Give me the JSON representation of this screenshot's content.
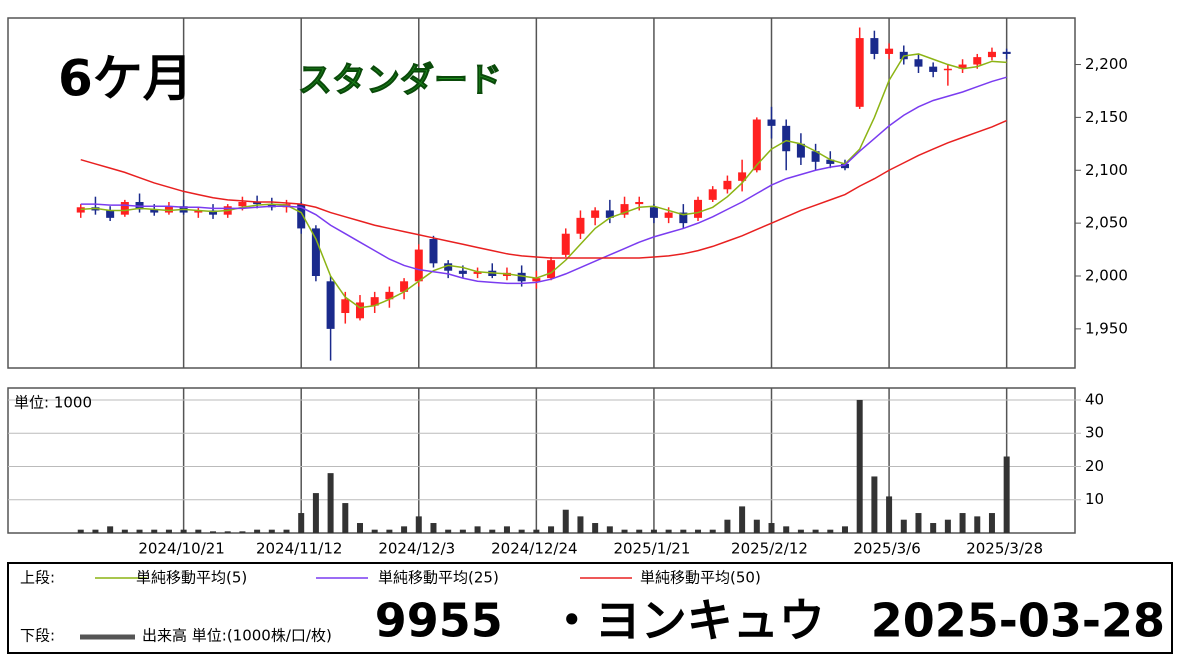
{
  "chart_data": [
    {
      "type": "candlestick",
      "label": "6ケ月",
      "market": "スタンダード",
      "x": [
        1,
        3,
        5,
        7,
        9,
        11,
        13,
        15,
        17,
        19,
        21,
        23,
        25,
        27,
        29,
        31,
        33,
        35,
        37,
        39,
        41,
        43,
        45,
        47,
        49,
        51,
        53,
        55,
        57,
        59,
        61,
        63,
        65,
        67,
        69,
        71,
        73,
        75,
        77,
        79,
        81,
        83,
        85,
        87,
        89,
        91,
        93,
        95,
        97,
        99,
        101,
        103,
        105,
        107,
        109,
        111,
        113,
        115,
        117,
        119,
        121,
        123,
        125,
        127
      ],
      "open": [
        2060,
        2065,
        2062,
        2058,
        2070,
        2063,
        2060,
        2066,
        2060,
        2062,
        2058,
        2066,
        2070,
        2068,
        2065,
        2068,
        2045,
        1995,
        1965,
        1960,
        1972,
        1978,
        1985,
        1995,
        2035,
        2012,
        2005,
        2002,
        2005,
        2000,
        2003,
        1995,
        1998,
        2020,
        2040,
        2055,
        2062,
        2058,
        2068,
        2065,
        2055,
        2060,
        2055,
        2072,
        2082,
        2090,
        2100,
        2148,
        2142,
        2125,
        2118,
        2110,
        2106,
        2160,
        2225,
        2210,
        2212,
        2205,
        2198,
        2195,
        2196,
        2200,
        2207,
        2212
      ],
      "high": [
        2068,
        2075,
        2066,
        2072,
        2078,
        2068,
        2070,
        2072,
        2065,
        2068,
        2068,
        2075,
        2076,
        2074,
        2072,
        2070,
        2048,
        2000,
        1985,
        1982,
        1985,
        1990,
        1998,
        2030,
        2038,
        2015,
        2010,
        2008,
        2012,
        2008,
        2010,
        2005,
        2018,
        2045,
        2062,
        2065,
        2072,
        2075,
        2075,
        2068,
        2065,
        2068,
        2075,
        2085,
        2095,
        2110,
        2150,
        2160,
        2148,
        2135,
        2125,
        2118,
        2110,
        2235,
        2232,
        2220,
        2218,
        2210,
        2202,
        2200,
        2205,
        2210,
        2216,
        2215
      ],
      "low": [
        2055,
        2058,
        2052,
        2056,
        2060,
        2057,
        2058,
        2058,
        2055,
        2054,
        2055,
        2062,
        2064,
        2062,
        2060,
        2040,
        1995,
        1920,
        1955,
        1958,
        1965,
        1970,
        1978,
        1990,
        2008,
        1998,
        1998,
        1998,
        1998,
        1996,
        1990,
        1988,
        1996,
        2018,
        2035,
        2048,
        2050,
        2055,
        2062,
        2050,
        2050,
        2045,
        2052,
        2070,
        2078,
        2080,
        2098,
        2130,
        2100,
        2105,
        2100,
        2102,
        2100,
        2158,
        2205,
        2205,
        2200,
        2192,
        2188,
        2180,
        2192,
        2196,
        2204,
        2205
      ],
      "close": [
        2065,
        2062,
        2055,
        2070,
        2063,
        2060,
        2066,
        2060,
        2062,
        2058,
        2066,
        2070,
        2068,
        2065,
        2068,
        2045,
        2000,
        1950,
        1978,
        1975,
        1980,
        1985,
        1995,
        2025,
        2012,
        2005,
        2002,
        2004,
        2000,
        2003,
        1995,
        1998,
        2015,
        2040,
        2055,
        2062,
        2055,
        2068,
        2070,
        2055,
        2060,
        2050,
        2072,
        2082,
        2090,
        2098,
        2148,
        2142,
        2118,
        2112,
        2108,
        2106,
        2102,
        2225,
        2210,
        2215,
        2205,
        2198,
        2193,
        2196,
        2200,
        2207,
        2212,
        2210
      ],
      "up_color": "#ff2020",
      "down_color": "#1a2a8c",
      "series": [
        {
          "name": "単純移動平均(5)",
          "color": "#8cb414",
          "values": [
            2063,
            2064,
            2062,
            2062,
            2064,
            2063,
            2062,
            2063,
            2062,
            2061,
            2062,
            2065,
            2067,
            2068,
            2067,
            2060,
            2035,
            2000,
            1980,
            1970,
            1972,
            1978,
            1985,
            1995,
            2005,
            2010,
            2008,
            2004,
            2003,
            2002,
            2000,
            1998,
            2003,
            2015,
            2030,
            2045,
            2055,
            2060,
            2065,
            2066,
            2062,
            2058,
            2060,
            2065,
            2075,
            2088,
            2105,
            2120,
            2128,
            2125,
            2118,
            2110,
            2106,
            2120,
            2150,
            2185,
            2208,
            2210,
            2205,
            2200,
            2196,
            2198,
            2203,
            2202
          ]
        },
        {
          "name": "単純移動平均(25)",
          "color": "#7a3cf0",
          "values": [
            2068,
            2068,
            2067,
            2067,
            2066,
            2066,
            2066,
            2065,
            2065,
            2064,
            2064,
            2064,
            2065,
            2066,
            2066,
            2065,
            2058,
            2048,
            2040,
            2032,
            2024,
            2016,
            2010,
            2006,
            2004,
            2002,
            1998,
            1995,
            1994,
            1993,
            1993,
            1994,
            1997,
            2002,
            2008,
            2014,
            2020,
            2026,
            2032,
            2037,
            2041,
            2045,
            2050,
            2056,
            2063,
            2070,
            2078,
            2086,
            2092,
            2096,
            2100,
            2103,
            2105,
            2118,
            2130,
            2142,
            2152,
            2160,
            2166,
            2170,
            2174,
            2179,
            2184,
            2188
          ]
        },
        {
          "name": "単純移動平均(50)",
          "color": "#e82020",
          "values": [
            2110,
            2106,
            2102,
            2098,
            2093,
            2088,
            2084,
            2080,
            2077,
            2074,
            2072,
            2071,
            2070,
            2070,
            2069,
            2068,
            2065,
            2060,
            2056,
            2052,
            2048,
            2045,
            2042,
            2039,
            2036,
            2033,
            2030,
            2027,
            2024,
            2021,
            2019,
            2018,
            2017,
            2017,
            2017,
            2017,
            2017,
            2017,
            2017,
            2018,
            2019,
            2021,
            2024,
            2028,
            2033,
            2038,
            2044,
            2050,
            2056,
            2062,
            2067,
            2072,
            2077,
            2085,
            2092,
            2100,
            2107,
            2114,
            2120,
            2126,
            2131,
            2136,
            2141,
            2147
          ]
        }
      ],
      "xlim": [
        -8.9,
        136.3
      ],
      "xticks": [
        {
          "value": 15,
          "label": "2024/10/21"
        },
        {
          "value": 31,
          "label": "2024/11/12"
        },
        {
          "value": 47,
          "label": "2024/12/3"
        },
        {
          "value": 63,
          "label": "2024/12/24"
        },
        {
          "value": 79,
          "label": "2025/1/21"
        },
        {
          "value": 95,
          "label": "2025/2/12"
        },
        {
          "value": 111,
          "label": "2025/3/6"
        },
        {
          "value": 127,
          "label": "2025/3/28"
        }
      ],
      "ylim": [
        1913,
        2244
      ],
      "yticks": [
        {
          "value": 1950,
          "label": "1,950"
        },
        {
          "value": 2000,
          "label": "2,000"
        },
        {
          "value": 2050,
          "label": "2,050"
        },
        {
          "value": 2100,
          "label": "2,100"
        },
        {
          "value": 2150,
          "label": "2,150"
        },
        {
          "value": 2200,
          "label": "2,200"
        }
      ],
      "grid": true
    },
    {
      "type": "bar",
      "unit_label": "単位: 1000",
      "color": "#333333",
      "values": [
        1,
        1,
        2,
        1,
        1,
        1,
        1,
        1,
        1,
        0.5,
        0.5,
        0.5,
        1,
        1,
        1,
        6,
        12,
        18,
        9,
        3,
        1,
        1,
        2,
        5,
        3,
        1,
        1,
        2,
        1,
        2,
        1,
        1,
        2,
        7,
        5,
        3,
        2,
        1,
        1,
        1,
        1,
        1,
        1,
        1,
        4,
        8,
        4,
        3,
        2,
        1,
        1,
        1,
        2,
        40,
        17,
        11,
        4,
        6,
        3,
        4,
        6,
        5,
        6,
        23
      ],
      "ylim": [
        0,
        43.6
      ],
      "yticks": [
        10,
        20,
        30,
        40
      ],
      "grid": true
    }
  ],
  "legend": {
    "upper": "上段:",
    "lower": "下段:",
    "volume": "出来高 単位:(1000株/口/枚)"
  },
  "title": "9955　・ヨンキュウ　2025-03-28"
}
